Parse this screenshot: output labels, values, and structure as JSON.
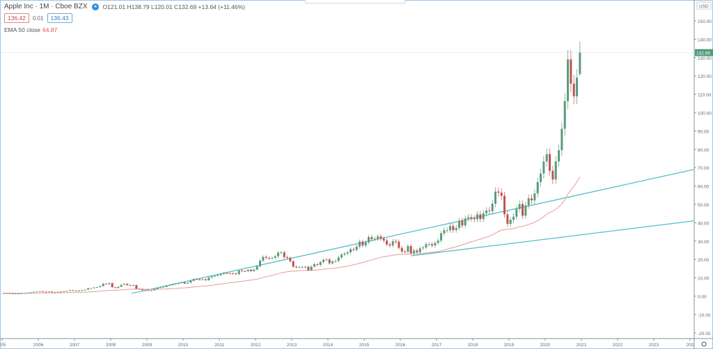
{
  "header": {
    "symbol": "Apple Inc · 1M · Cboe BZX",
    "ohlc": "O121.01 H138.79 L120.01 C132.69 +13.64 (+11.46%)",
    "sell_price": "136.42",
    "spread": "0.01",
    "buy_price": "136.43",
    "indicator_label": "EMA 50 close",
    "indicator_value": "64.87"
  },
  "price_axis": {
    "currency": "USD",
    "last_price_label": "132.69"
  },
  "colors": {
    "up": "#5b9a7a",
    "down": "#c0524e",
    "ema": "#e89a94",
    "trendline": "#4fc1c7",
    "last_price": "#4f9a78",
    "grid": "#f0f0f0"
  },
  "chart_data": {
    "type": "candlestick",
    "interval": "1M",
    "start_month": "2005-01",
    "ylim": [
      -20,
      160
    ],
    "yticks": [
      -20,
      -10,
      0,
      10,
      20,
      30,
      40,
      50,
      60,
      70,
      80,
      90,
      100,
      110,
      120,
      130,
      140,
      150
    ],
    "ytick_labels": [
      "-20.00",
      "-10.00",
      "0.00",
      "10.00",
      "20.00",
      "30.00",
      "40.00",
      "50.00",
      "60.00",
      "70.00",
      "80.00",
      "90.00",
      "100.00",
      "110.00",
      "120.00",
      "130.00",
      "140.00",
      "150.00"
    ],
    "xlim": [
      "2005",
      "2024.1"
    ],
    "xtick_labels": [
      "05",
      "2006",
      "2007",
      "2008",
      "2009",
      "2010",
      "2011",
      "2012",
      "2013",
      "2014",
      "2015",
      "2016",
      "2017",
      "2018",
      "2019",
      "2020",
      "2021",
      "2022",
      "2023",
      "202"
    ],
    "grid": false,
    "monthly_close": [
      1.6,
      1.6,
      1.49,
      1.25,
      1.42,
      1.27,
      1.53,
      1.68,
      1.91,
      2.07,
      2.42,
      2.57,
      2.71,
      2.44,
      2.24,
      2.52,
      2.13,
      2.04,
      2.43,
      2.41,
      2.75,
      2.88,
      3.27,
      3.03,
      3.06,
      3.0,
      3.32,
      3.56,
      4.34,
      4.36,
      4.72,
      4.94,
      5.48,
      6.78,
      6.54,
      7.07,
      4.83,
      4.46,
      5.12,
      6.21,
      6.74,
      5.98,
      5.68,
      6.05,
      4.06,
      3.84,
      3.31,
      3.05,
      3.21,
      3.17,
      3.75,
      4.49,
      4.86,
      5.09,
      5.84,
      6.01,
      6.62,
      6.74,
      7.14,
      7.53,
      6.86,
      7.31,
      8.39,
      9.33,
      9.18,
      8.98,
      9.2,
      8.68,
      10.13,
      10.73,
      11.1,
      11.51,
      12.1,
      12.62,
      12.45,
      12.43,
      12.4,
      12.0,
      13.97,
      13.67,
      13.61,
      14.37,
      13.69,
      14.48,
      16.3,
      19.37,
      21.41,
      20.87,
      20.63,
      20.85,
      21.73,
      23.73,
      23.83,
      21.27,
      20.9,
      19.01,
      16.07,
      15.8,
      15.8,
      15.8,
      16.0,
      14.2,
      16.1,
      17.42,
      17.0,
      18.6,
      19.8,
      20.0,
      17.9,
      18.9,
      19.2,
      21.1,
      22.6,
      23.2,
      23.9,
      25.6,
      25.2,
      27.0,
      29.7,
      27.6,
      29.3,
      32.2,
      31.1,
      31.3,
      32.6,
      31.4,
      30.3,
      28.2,
      27.6,
      29.9,
      29.7,
      26.3,
      24.3,
      24.2,
      27.3,
      23.4,
      24.9,
      23.9,
      26.1,
      26.5,
      28.3,
      28.3,
      27.6,
      29.0,
      30.3,
      34.2,
      35.9,
      35.9,
      38.2,
      36.0,
      37.2,
      41.0,
      38.5,
      42.3,
      43.0,
      42.3,
      41.9,
      44.6,
      42.0,
      45.2,
      46.7,
      46.3,
      50.4,
      57.0,
      56.4,
      54.7,
      44.6,
      39.4,
      41.6,
      43.3,
      47.5,
      50.2,
      43.8,
      49.5,
      53.3,
      52.2,
      56.0,
      62.2,
      66.8,
      73.4,
      77.4,
      68.3,
      63.6,
      73.4,
      79.5,
      91.2,
      106.3,
      129.0,
      115.8,
      108.9,
      119.05,
      132.69
    ],
    "last_candle": {
      "open": 121.01,
      "high": 138.79,
      "low": 120.01,
      "close": 132.69
    },
    "indicator": {
      "name": "EMA 50 close",
      "period": 50
    },
    "trendlines": [
      {
        "from": [
          "2008.58",
          1.5
        ],
        "to": [
          "2024.1",
          69
        ]
      },
      {
        "from": [
          "2016.3",
          22
        ],
        "to": [
          "2024.1",
          41
        ]
      }
    ]
  }
}
